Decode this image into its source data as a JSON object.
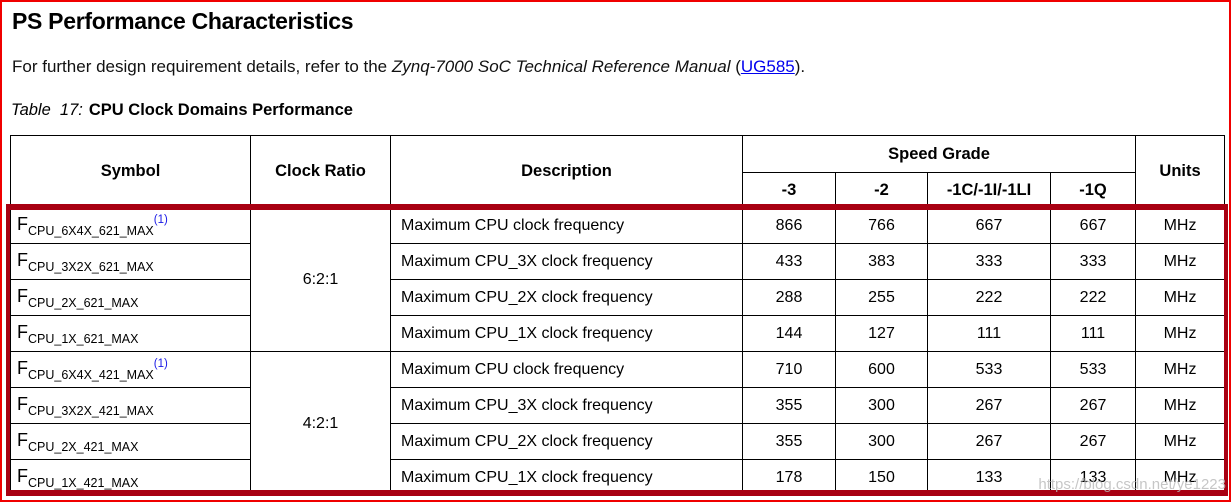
{
  "page": {
    "title": "PS Performance Characteristics",
    "intro": {
      "prefix": "For further design requirement details, refer to the ",
      "manual_title": "Zynq-7000 SoC Technical Reference Manual",
      "paren_open": " (",
      "link_text": "UG585",
      "suffix": ")."
    },
    "caption": {
      "label": "Table  17:",
      "title": "CPU Clock Domains Performance"
    },
    "watermark": "https://blog.csdn.net/ye1223"
  },
  "table": {
    "headers": {
      "symbol": "Symbol",
      "clock_ratio": "Clock Ratio",
      "description": "Description",
      "speed_grade": "Speed Grade",
      "units": "Units",
      "grades": [
        "-3",
        "-2",
        "-1C/-1I/-1LI",
        "-1Q"
      ]
    },
    "groups": [
      {
        "clock_ratio": "6:2:1",
        "rows": [
          {
            "symbol_base": "F",
            "symbol_sub": "CPU_6X4X_621_MAX",
            "note": "(1)",
            "description": "Maximum CPU clock frequency",
            "values": [
              "866",
              "766",
              "667",
              "667"
            ],
            "units": "MHz"
          },
          {
            "symbol_base": "F",
            "symbol_sub": "CPU_3X2X_621_MAX",
            "note": "",
            "description": "Maximum CPU_3X clock frequency",
            "values": [
              "433",
              "383",
              "333",
              "333"
            ],
            "units": "MHz"
          },
          {
            "symbol_base": "F",
            "symbol_sub": "CPU_2X_621_MAX",
            "note": "",
            "description": "Maximum CPU_2X clock frequency",
            "values": [
              "288",
              "255",
              "222",
              "222"
            ],
            "units": "MHz"
          },
          {
            "symbol_base": "F",
            "symbol_sub": "CPU_1X_621_MAX",
            "note": "",
            "description": "Maximum CPU_1X clock frequency",
            "values": [
              "144",
              "127",
              "111",
              "111"
            ],
            "units": "MHz"
          }
        ]
      },
      {
        "clock_ratio": "4:2:1",
        "rows": [
          {
            "symbol_base": "F",
            "symbol_sub": "CPU_6X4X_421_MAX",
            "note": "(1)",
            "description": "Maximum CPU clock frequency",
            "values": [
              "710",
              "600",
              "533",
              "533"
            ],
            "units": "MHz"
          },
          {
            "symbol_base": "F",
            "symbol_sub": "CPU_3X2X_421_MAX",
            "note": "",
            "description": "Maximum CPU_3X clock frequency",
            "values": [
              "355",
              "300",
              "267",
              "267"
            ],
            "units": "MHz"
          },
          {
            "symbol_base": "F",
            "symbol_sub": "CPU_2X_421_MAX",
            "note": "",
            "description": "Maximum CPU_2X clock frequency",
            "values": [
              "355",
              "300",
              "267",
              "267"
            ],
            "units": "MHz"
          },
          {
            "symbol_base": "F",
            "symbol_sub": "CPU_1X_421_MAX",
            "note": "",
            "description": "Maximum CPU_1X clock frequency",
            "values": [
              "178",
              "150",
              "133",
              "133"
            ],
            "units": "MHz"
          }
        ]
      }
    ]
  },
  "colors": {
    "frame_red": "#f00000",
    "highlight_red": "#a80012",
    "link_blue": "#0000ee",
    "footnote_blue": "#1a1ae6",
    "watermark_gray": "#b9b9b9",
    "table_border": "#000000"
  }
}
